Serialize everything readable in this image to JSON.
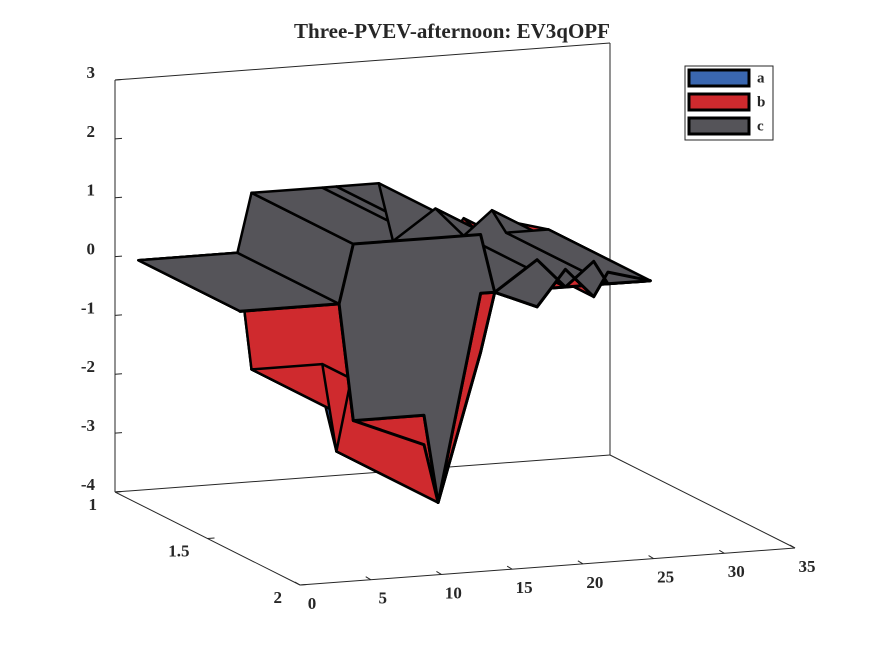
{
  "chart_data": {
    "type": "area3d",
    "title": "Three-PVEV-afternoon: EV3qOPF",
    "x": [
      1,
      8,
      9,
      14,
      15,
      18,
      19,
      22,
      24,
      26,
      27,
      30
    ],
    "series": [
      {
        "name": "a",
        "color": "#3a67b0",
        "values": [
          0,
          0,
          -2,
          -2.5,
          -3.5,
          -1,
          0,
          0,
          0,
          0,
          0,
          0
        ]
      },
      {
        "name": "b",
        "color": "#cf2a2e",
        "values": [
          0,
          0,
          0,
          0.5,
          0,
          1,
          0,
          -0.3,
          0.3,
          -0.2,
          0.2,
          0
        ]
      },
      {
        "name": "c",
        "color": "#555459",
        "values": [
          0,
          0,
          3,
          3,
          4.5,
          1,
          0,
          0.8,
          -0.3,
          0.6,
          -0.2,
          0
        ]
      }
    ],
    "xlim": [
      0,
      35
    ],
    "xticks": [
      0,
      5,
      10,
      15,
      20,
      25,
      30,
      35
    ],
    "ylim": [
      1,
      2
    ],
    "yticks": [
      1,
      1.5,
      2
    ],
    "zlim": [
      -4,
      3
    ],
    "zticks": [
      -4,
      -3,
      -2,
      -1,
      0,
      1,
      2,
      3
    ],
    "legend": "northeast"
  }
}
